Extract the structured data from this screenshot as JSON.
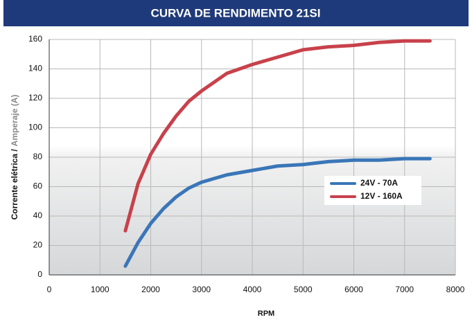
{
  "chart_data": {
    "type": "line",
    "title": "CURVA DE RENDIMENTO 21SI",
    "xlabel": "RPM",
    "ylabel": [
      "Corrente elétrica /",
      "Amperaje (A)"
    ],
    "x": [
      1500,
      1750,
      2000,
      2250,
      2500,
      2750,
      3000,
      3500,
      4000,
      4500,
      5000,
      5500,
      6000,
      6500,
      7000,
      7500
    ],
    "series": [
      {
        "name": "24V - 70A",
        "color": "#3a76b8",
        "values": [
          6,
          22,
          35,
          45,
          53,
          59,
          63,
          68,
          71,
          74,
          75,
          77,
          78,
          78,
          79,
          79
        ]
      },
      {
        "name": "12V - 160A",
        "color": "#c8414b",
        "values": [
          30,
          62,
          82,
          96,
          108,
          118,
          125,
          137,
          143,
          148,
          153,
          155,
          156,
          158,
          159,
          159
        ]
      }
    ],
    "xlim": [
      0,
      8000
    ],
    "xticks": [
      0,
      1000,
      2000,
      3000,
      4000,
      5000,
      6000,
      7000,
      8000
    ],
    "ylim": [
      0,
      160
    ],
    "yticks": [
      0,
      20,
      40,
      60,
      80,
      100,
      120,
      140,
      160
    ],
    "grid": true
  }
}
